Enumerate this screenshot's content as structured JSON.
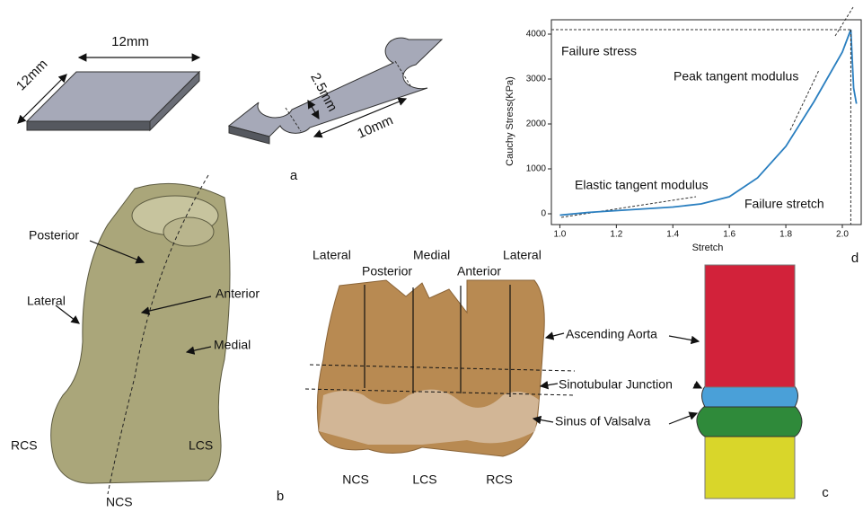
{
  "panel_a": {
    "label": "a",
    "plate_width": "12mm",
    "plate_length": "12mm",
    "neck_width": "2.5mm",
    "gauge_length": "10mm"
  },
  "panel_b": {
    "label": "b",
    "labels": [
      "Posterior",
      "Lateral",
      "Anterior",
      "Medial",
      "RCS",
      "LCS",
      "NCS"
    ]
  },
  "photo": {
    "top_labels": [
      "Lateral",
      "Posterior",
      "Medial",
      "Anterior",
      "Lateral"
    ],
    "regions": [
      "Ascending Aorta",
      "Sinotubular Junction",
      "Sinus of Valsalva"
    ],
    "bottom_labels": [
      "NCS",
      "LCS",
      "RCS"
    ]
  },
  "panel_c": {
    "label": "c"
  },
  "chart_data": {
    "type": "line",
    "panel_label": "d",
    "x_label": "Stretch",
    "y_label": "Cauchy Stress(KPa)",
    "x": [
      1.0,
      1.1,
      1.2,
      1.3,
      1.4,
      1.5,
      1.6,
      1.7,
      1.8,
      1.9,
      2.0,
      2.03,
      2.04,
      2.05
    ],
    "values": [
      -30,
      30,
      70,
      110,
      150,
      220,
      380,
      800,
      1500,
      2500,
      3600,
      4100,
      2800,
      2450
    ],
    "color": "#2a7fc0",
    "xlim": [
      0.97,
      2.07
    ],
    "ylim": [
      -240,
      4320
    ],
    "xticks": [
      {
        "value": 1.0,
        "label": "1.0"
      },
      1.2,
      1.4,
      1.6,
      1.8,
      {
        "value": 2.0,
        "label": "2.0"
      }
    ],
    "yticks": [
      0,
      1000,
      2000,
      3000,
      4000
    ],
    "annotations": [
      "Failure stress",
      "Peak tangent modulus",
      "Elastic tangent modulus",
      "Failure stretch"
    ]
  }
}
